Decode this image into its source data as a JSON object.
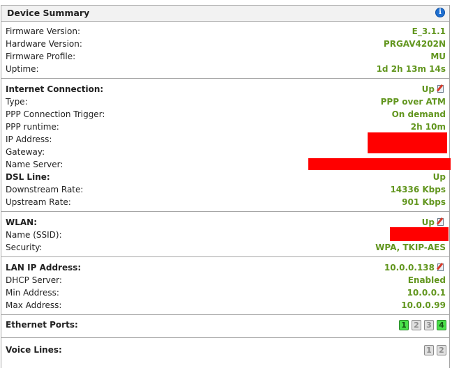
{
  "header": {
    "title": "Device Summary",
    "info_icon": "info-icon"
  },
  "device": {
    "firmware_version": {
      "label": "Firmware Version:",
      "value": "E_3.1.1"
    },
    "hardware_version": {
      "label": "Hardware Version:",
      "value": "PRGAV4202N"
    },
    "firmware_profile": {
      "label": "Firmware Profile:",
      "value": "MU"
    },
    "uptime": {
      "label": "Uptime:",
      "value": "1d 2h 13m 14s"
    }
  },
  "internet": {
    "title": "Internet Connection:",
    "status": "Up",
    "type": {
      "label": "Type:",
      "value": "PPP over ATM"
    },
    "trigger": {
      "label": "PPP Connection Trigger:",
      "value": "On demand"
    },
    "runtime": {
      "label": "PPP runtime:",
      "value": "2h 10m"
    },
    "ip": {
      "label": "IP Address:"
    },
    "gateway": {
      "label": "Gateway:"
    },
    "name_server": {
      "label": "Name Server:"
    },
    "dsl": {
      "label": "DSL Line:",
      "value": "Up"
    },
    "downstream": {
      "label": "Downstream Rate:",
      "value": "14336 Kbps"
    },
    "upstream": {
      "label": "Upstream Rate:",
      "value": "901 Kbps"
    }
  },
  "wlan": {
    "title": "WLAN:",
    "status": "Up",
    "ssid": {
      "label": "Name (SSID):"
    },
    "security": {
      "label": "Security:",
      "value": "WPA, TKIP-AES"
    }
  },
  "lan": {
    "title": "LAN IP Address:",
    "value": "10.0.0.138",
    "dhcp": {
      "label": "DHCP Server:",
      "value": "Enabled"
    },
    "min": {
      "label": "Min Address:",
      "value": "10.0.0.1"
    },
    "max": {
      "label": "Max Address:",
      "value": "10.0.0.99"
    }
  },
  "ethernet": {
    "title": "Ethernet Ports:",
    "ports": [
      {
        "label": "1",
        "state": "up"
      },
      {
        "label": "2",
        "state": "down"
      },
      {
        "label": "3",
        "state": "down"
      },
      {
        "label": "4",
        "state": "up"
      }
    ]
  },
  "voice": {
    "title": "Voice Lines:",
    "lines": [
      {
        "label": "1",
        "state": "down"
      },
      {
        "label": "2",
        "state": "down"
      }
    ]
  },
  "colors": {
    "value_green": "#62961f",
    "redaction": "#ff0000",
    "port_up": "#4be04b"
  }
}
